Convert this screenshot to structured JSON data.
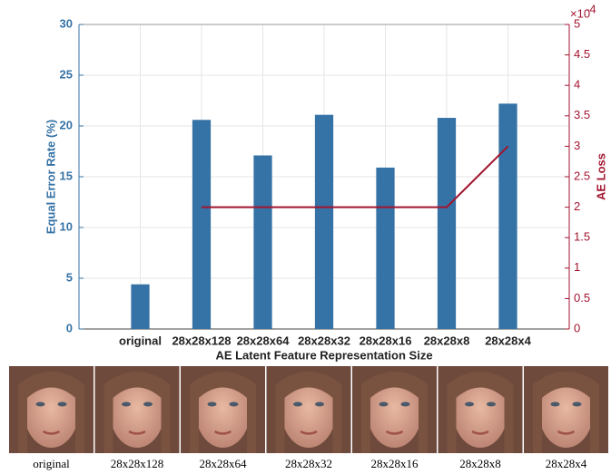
{
  "chart_data": {
    "type": "bar_line",
    "x_label": "AE Latent Feature Representation Size",
    "y_label": "Equal Error Rate (%)",
    "y2_label": "AE Loss",
    "y2_scale_base": "×10",
    "y2_scale_exponent": "-4",
    "categories": [
      "original",
      "28x28x128",
      "28x28x64",
      "28x28x32",
      "28x28x16",
      "28x28x8",
      "28x28x4"
    ],
    "series": [
      {
        "color": "#3572a5",
        "values": [
          4.4,
          20.6,
          17.1,
          21.1,
          15.9,
          20.8,
          22.2
        ]
      },
      {
        "color": "#a2142f",
        "axis": "y2",
        "values": [
          null,
          2,
          2,
          2,
          2,
          2,
          3
        ]
      }
    ],
    "ylim": [
      0,
      30
    ],
    "yticks": [
      0,
      5,
      10,
      15,
      20,
      25,
      30
    ],
    "y2lim": [
      0,
      5
    ],
    "y2ticks": [
      0,
      0.5,
      1,
      1.5,
      2,
      2.5,
      3,
      3.5,
      4,
      4.5,
      5
    ],
    "grid": true
  },
  "image_strip": {
    "captions": [
      "original",
      "28x28x128",
      "28x28x64",
      "28x28x32",
      "28x28x16",
      "28x28x8",
      "28x28x4"
    ]
  }
}
